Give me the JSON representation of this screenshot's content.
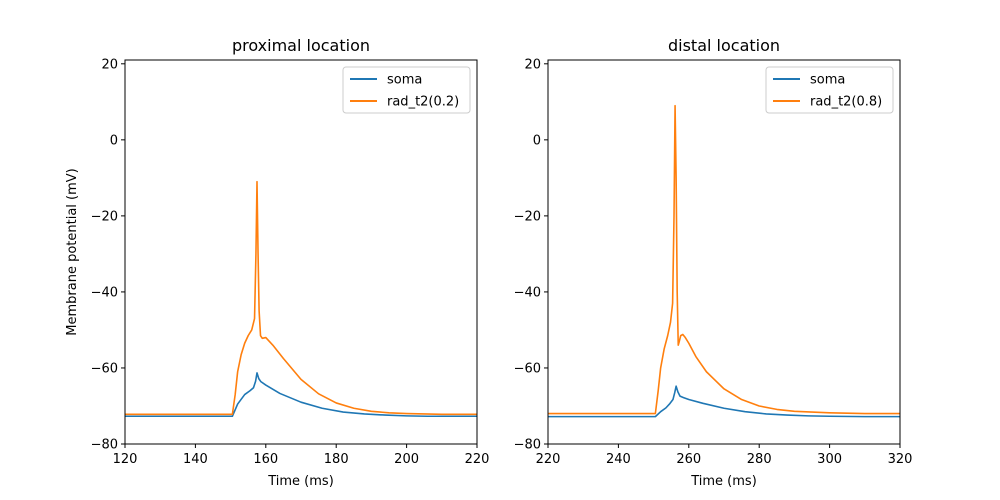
{
  "chart_data": [
    {
      "type": "line",
      "title": "proximal location",
      "xlabel": "Time (ms)",
      "ylabel": "Membrane potential (mV)",
      "xlim": [
        120,
        220
      ],
      "ylim": [
        -80,
        21
      ],
      "xticks": [
        120,
        140,
        160,
        180,
        200,
        220
      ],
      "yticks": [
        -80,
        -60,
        -40,
        -20,
        0,
        20
      ],
      "legend": "top-right",
      "series": [
        {
          "name": "soma",
          "color": "#1f77b4",
          "x": [
            120,
            150.5,
            152,
            154,
            155.5,
            156.5,
            157.1,
            157.5,
            158.0,
            158.6,
            160,
            164,
            170,
            176,
            182,
            188,
            194,
            200,
            206,
            212,
            220
          ],
          "y": [
            -72.7,
            -72.7,
            -69.5,
            -67.0,
            -66.0,
            -65.2,
            -63.5,
            -61.3,
            -62.8,
            -63.6,
            -64.5,
            -66.7,
            -69.0,
            -70.6,
            -71.6,
            -72.1,
            -72.4,
            -72.6,
            -72.7,
            -72.7,
            -72.7
          ]
        },
        {
          "name": "rad_t2(0.2)",
          "color": "#ff7f0e",
          "x": [
            120,
            150.5,
            151.3,
            152,
            153,
            154,
            155,
            156,
            156.8,
            157.2,
            157.5,
            157.8,
            158.1,
            158.5,
            159,
            160,
            162,
            165,
            170,
            175,
            180,
            185,
            190,
            195,
            200,
            210,
            220
          ],
          "y": [
            -72.2,
            -72.2,
            -67.0,
            -61.0,
            -56.5,
            -53.5,
            -51.5,
            -50.0,
            -47.0,
            -30.0,
            -11.0,
            -30.0,
            -45.0,
            -51.5,
            -52.2,
            -52.0,
            -54.0,
            -57.5,
            -63.0,
            -66.8,
            -69.2,
            -70.6,
            -71.4,
            -71.8,
            -72.0,
            -72.2,
            -72.2
          ]
        }
      ]
    },
    {
      "type": "line",
      "title": "distal location",
      "xlabel": "Time (ms)",
      "ylabel": "",
      "xlim": [
        220,
        320
      ],
      "ylim": [
        -80,
        21
      ],
      "xticks": [
        220,
        240,
        260,
        280,
        300,
        320
      ],
      "yticks": [
        -80,
        -60,
        -40,
        -20,
        0,
        20
      ],
      "legend": "top-right",
      "series": [
        {
          "name": "soma",
          "color": "#1f77b4",
          "x": [
            220,
            250.5,
            252,
            253.5,
            254.5,
            255.5,
            256.0,
            256.4,
            256.9,
            257.5,
            258.5,
            260,
            264,
            270,
            276,
            282,
            288,
            294,
            300,
            310,
            320
          ],
          "y": [
            -72.8,
            -72.8,
            -71.5,
            -70.5,
            -69.5,
            -68.3,
            -66.5,
            -64.8,
            -66.3,
            -67.4,
            -67.8,
            -68.3,
            -69.3,
            -70.6,
            -71.5,
            -72.1,
            -72.4,
            -72.6,
            -72.7,
            -72.8,
            -72.8
          ]
        },
        {
          "name": "rad_t2(0.8)",
          "color": "#ff7f0e",
          "x": [
            220,
            250.5,
            251.3,
            252,
            253,
            254,
            254.8,
            255.4,
            255.8,
            256.1,
            256.4,
            256.7,
            257.0,
            257.3,
            257.7,
            258.3,
            259,
            260,
            262,
            265,
            270,
            275,
            280,
            285,
            290,
            300,
            310,
            320
          ],
          "y": [
            -72.0,
            -72.0,
            -66.0,
            -60.0,
            -55.0,
            -51.5,
            -48.0,
            -43.0,
            -20.0,
            9.0,
            -10.0,
            -40.0,
            -54.0,
            -53.0,
            -51.5,
            -51.2,
            -52.0,
            -53.5,
            -57.0,
            -61.0,
            -65.5,
            -68.3,
            -70.0,
            -70.9,
            -71.4,
            -71.8,
            -72.0,
            -72.0
          ]
        }
      ]
    }
  ]
}
